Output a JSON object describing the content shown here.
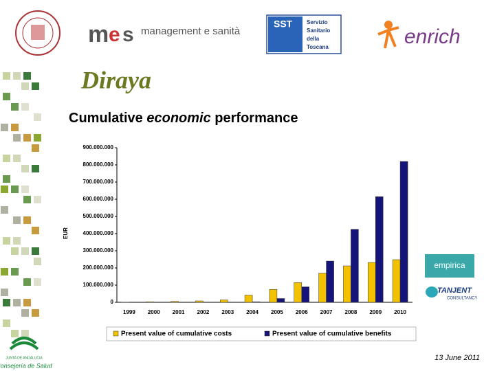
{
  "slide": {
    "heading": "Diraya",
    "title": {
      "before": "Cumulative",
      "emphasis": "economic",
      "after": "performance"
    },
    "date": "13 June 2011",
    "logos": {
      "mes": "management e sanità",
      "sst": [
        "Servizio",
        "Sanitario",
        "della",
        "Toscana"
      ],
      "sst_mark": "SST",
      "enrich": "enrich",
      "empirica": "empirica",
      "tanjent": "TANJENT",
      "tanjent_sub": "CONSULTANCY",
      "junta": "JUNTA DE ANDALUCIA",
      "consejeria": "Consejería de Salud"
    }
  },
  "chart_data": {
    "type": "bar",
    "ylabel": "EUR",
    "categories": [
      "1999",
      "2000",
      "2001",
      "2002",
      "2003",
      "2004",
      "2005",
      "2006",
      "2007",
      "2008",
      "2009",
      "2010"
    ],
    "series": [
      {
        "name": "Present value of cumulative costs",
        "color": "#f2c200",
        "values": [
          1000000,
          3000000,
          5000000,
          8000000,
          14000000,
          42000000,
          75000000,
          115000000,
          170000000,
          212000000,
          232000000,
          248000000
        ]
      },
      {
        "name": "Present value of cumulative benefits",
        "color": "#14147a",
        "values": [
          0,
          0,
          0,
          0,
          0,
          3000000,
          22000000,
          90000000,
          240000000,
          425000000,
          615000000,
          820000000
        ]
      }
    ],
    "ylim": [
      0,
      900000000
    ],
    "yticks": [
      0,
      {
        "value": 100000000,
        "label": "100.000.000"
      },
      {
        "value": 200000000,
        "label": "200.000.000"
      },
      {
        "value": 300000000,
        "label": "300.000.000"
      },
      {
        "value": 400000000,
        "label": "400.000.000"
      },
      {
        "value": 500000000,
        "label": "500.000.000"
      },
      {
        "value": 600000000,
        "label": "600.000.000"
      },
      {
        "value": 700000000,
        "label": "700.000.000"
      },
      {
        "value": 800000000,
        "label": "800.000.000"
      },
      {
        "value": 900000000,
        "label": "900.000.000"
      }
    ],
    "legend": "bottom"
  }
}
